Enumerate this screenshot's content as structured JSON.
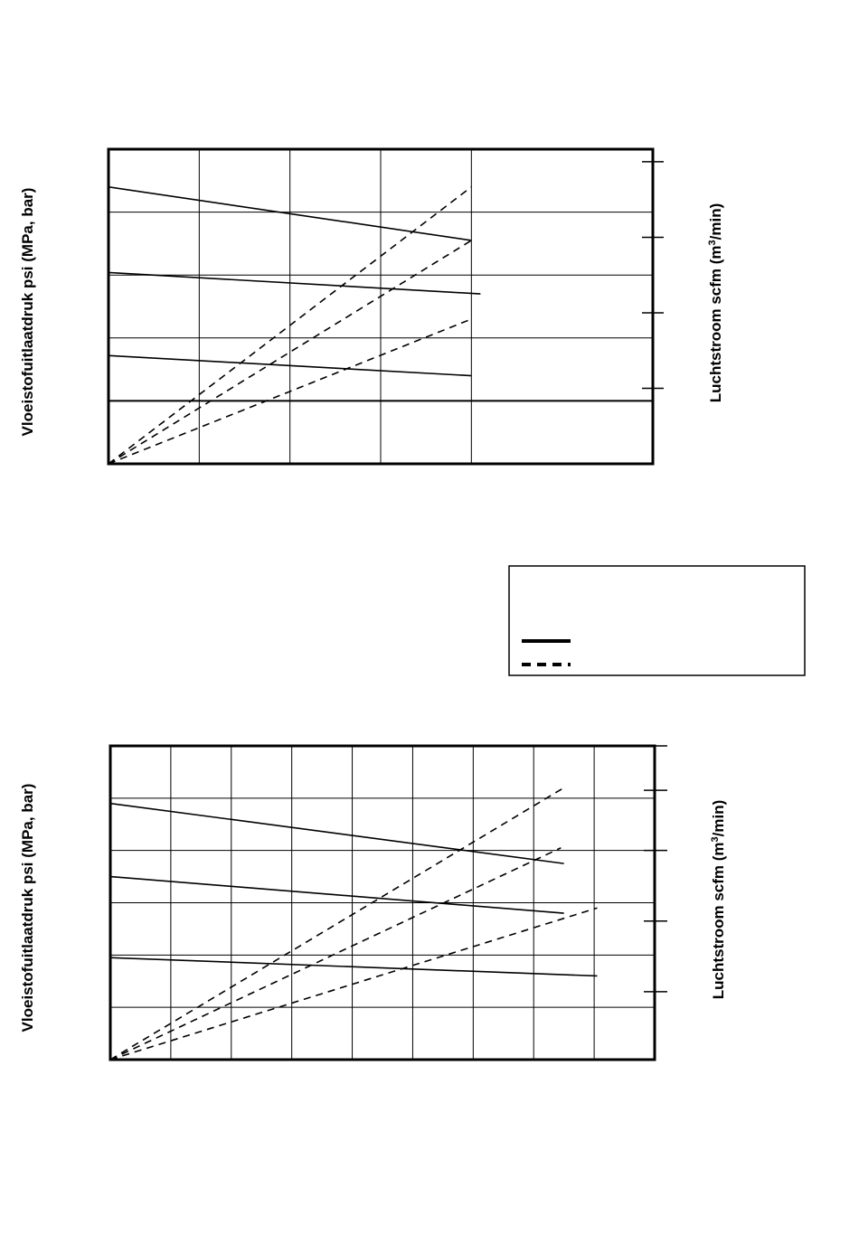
{
  "colors": {
    "line": "#000000",
    "background": "#ffffff"
  },
  "legend": {
    "entries": [
      {
        "style": "solid",
        "label": ""
      },
      {
        "style": "dashed",
        "label": ""
      }
    ]
  },
  "chart_data": [
    {
      "type": "line",
      "ylabel": "Vloeistofuitlaatdruk psi (MPa, bar)",
      "xlabel_main": "Luchtstroom scfm (m",
      "xlabel_sup": "3",
      "xlabel_tail": "/min)",
      "xlim": [
        0,
        6
      ],
      "ylim": [
        0,
        5
      ],
      "x_gridlines": [
        1,
        2,
        3,
        4
      ],
      "y_gridlines": [
        1,
        2,
        3,
        4
      ],
      "y_heavy_gridline": 1,
      "right_ticks": [
        1.2,
        2.4,
        3.6,
        4.8
      ],
      "series": [
        {
          "style": "solid",
          "points": [
            [
              0,
              4.4
            ],
            [
              4,
              3.55
            ]
          ]
        },
        {
          "style": "solid",
          "points": [
            [
              0,
              3.04
            ],
            [
              4.1,
              2.7
            ]
          ]
        },
        {
          "style": "solid",
          "points": [
            [
              0,
              1.72
            ],
            [
              4,
              1.4
            ]
          ]
        },
        {
          "style": "dashed",
          "points": [
            [
              0,
              0
            ],
            [
              4,
              4.4
            ]
          ]
        },
        {
          "style": "dashed",
          "points": [
            [
              0,
              0
            ],
            [
              4,
              3.55
            ]
          ]
        },
        {
          "style": "dashed",
          "points": [
            [
              0,
              0
            ],
            [
              4,
              2.3
            ]
          ]
        }
      ]
    },
    {
      "type": "line",
      "ylabel": "Vloeistofuitlaatdruk psi (MPa, bar)",
      "xlabel_main": "Luchtstroom scfm (m",
      "xlabel_sup": "3",
      "xlabel_tail": "/min)",
      "xlim": [
        0,
        9
      ],
      "ylim": [
        0,
        6
      ],
      "x_gridlines": [
        1,
        2,
        3,
        4,
        5,
        6,
        7,
        8
      ],
      "y_gridlines": [
        1,
        2,
        3,
        4,
        5
      ],
      "right_ticks": [
        1.3,
        2.65,
        4,
        5.15,
        6
      ],
      "series": [
        {
          "style": "solid",
          "points": [
            [
              0,
              4.9
            ],
            [
              7.5,
              3.75
            ]
          ]
        },
        {
          "style": "solid",
          "points": [
            [
              0,
              3.5
            ],
            [
              7.5,
              2.8
            ]
          ]
        },
        {
          "style": "solid",
          "points": [
            [
              0,
              1.95
            ],
            [
              8.05,
              1.6
            ]
          ]
        },
        {
          "style": "dashed",
          "points": [
            [
              0,
              0
            ],
            [
              7.5,
              5.2
            ]
          ]
        },
        {
          "style": "dashed",
          "points": [
            [
              0,
              0
            ],
            [
              7.45,
              4.05
            ]
          ]
        },
        {
          "style": "dashed",
          "points": [
            [
              0,
              0
            ],
            [
              8.05,
              2.9
            ]
          ]
        }
      ]
    }
  ]
}
